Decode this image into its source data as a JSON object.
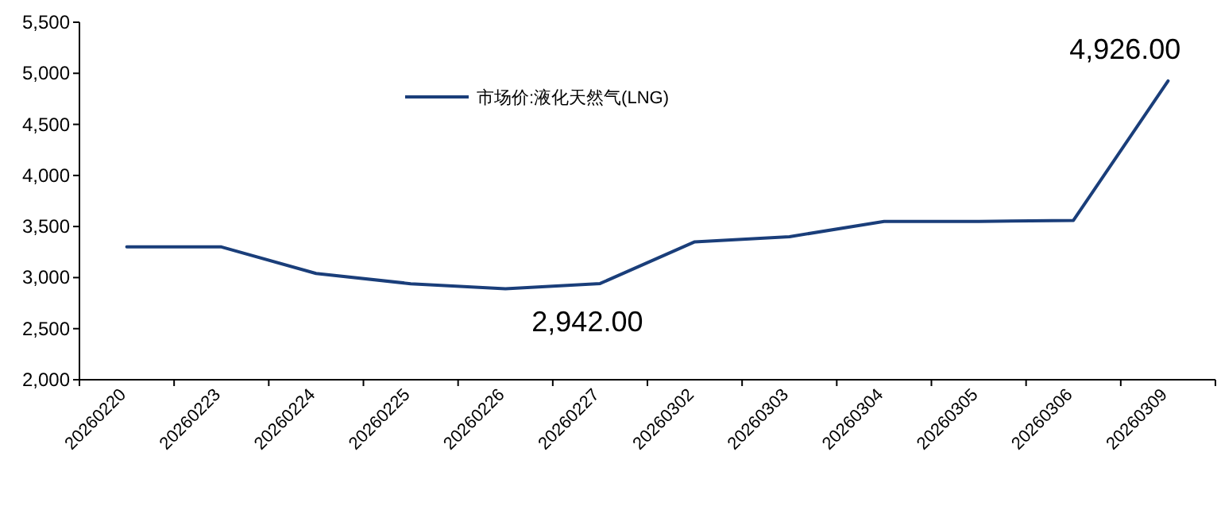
{
  "chart_data": {
    "type": "line",
    "categories": [
      "20260220",
      "20260223",
      "20260224",
      "20260225",
      "20260226",
      "20260227",
      "20260302",
      "20260303",
      "20260304",
      "20260305",
      "20260306",
      "20260309"
    ],
    "series": [
      {
        "name": "市场价:液化天然气(LNG)",
        "color": "#1a3e7a",
        "values": [
          3300,
          3300,
          3040,
          2940,
          2890,
          2942,
          3350,
          3400,
          3550,
          3550,
          3560,
          4926
        ],
        "value_labels": [
          null,
          null,
          null,
          null,
          null,
          "2,942.00",
          null,
          null,
          null,
          null,
          null,
          "4,926.00"
        ]
      }
    ],
    "ylim": [
      2000,
      5500
    ],
    "yticks": [
      {
        "value": 2000,
        "label": "2,000"
      },
      {
        "value": 2500,
        "label": "2,500"
      },
      {
        "value": 3000,
        "label": "3,000"
      },
      {
        "value": 3500,
        "label": "3,500"
      },
      {
        "value": 4000,
        "label": "4,000"
      },
      {
        "value": 4500,
        "label": "4,500"
      },
      {
        "value": 5000,
        "label": "5,000"
      },
      {
        "value": 5500,
        "label": "5,500"
      }
    ],
    "grid": false,
    "legend": "top",
    "marker": "none",
    "line_style": "solid"
  }
}
